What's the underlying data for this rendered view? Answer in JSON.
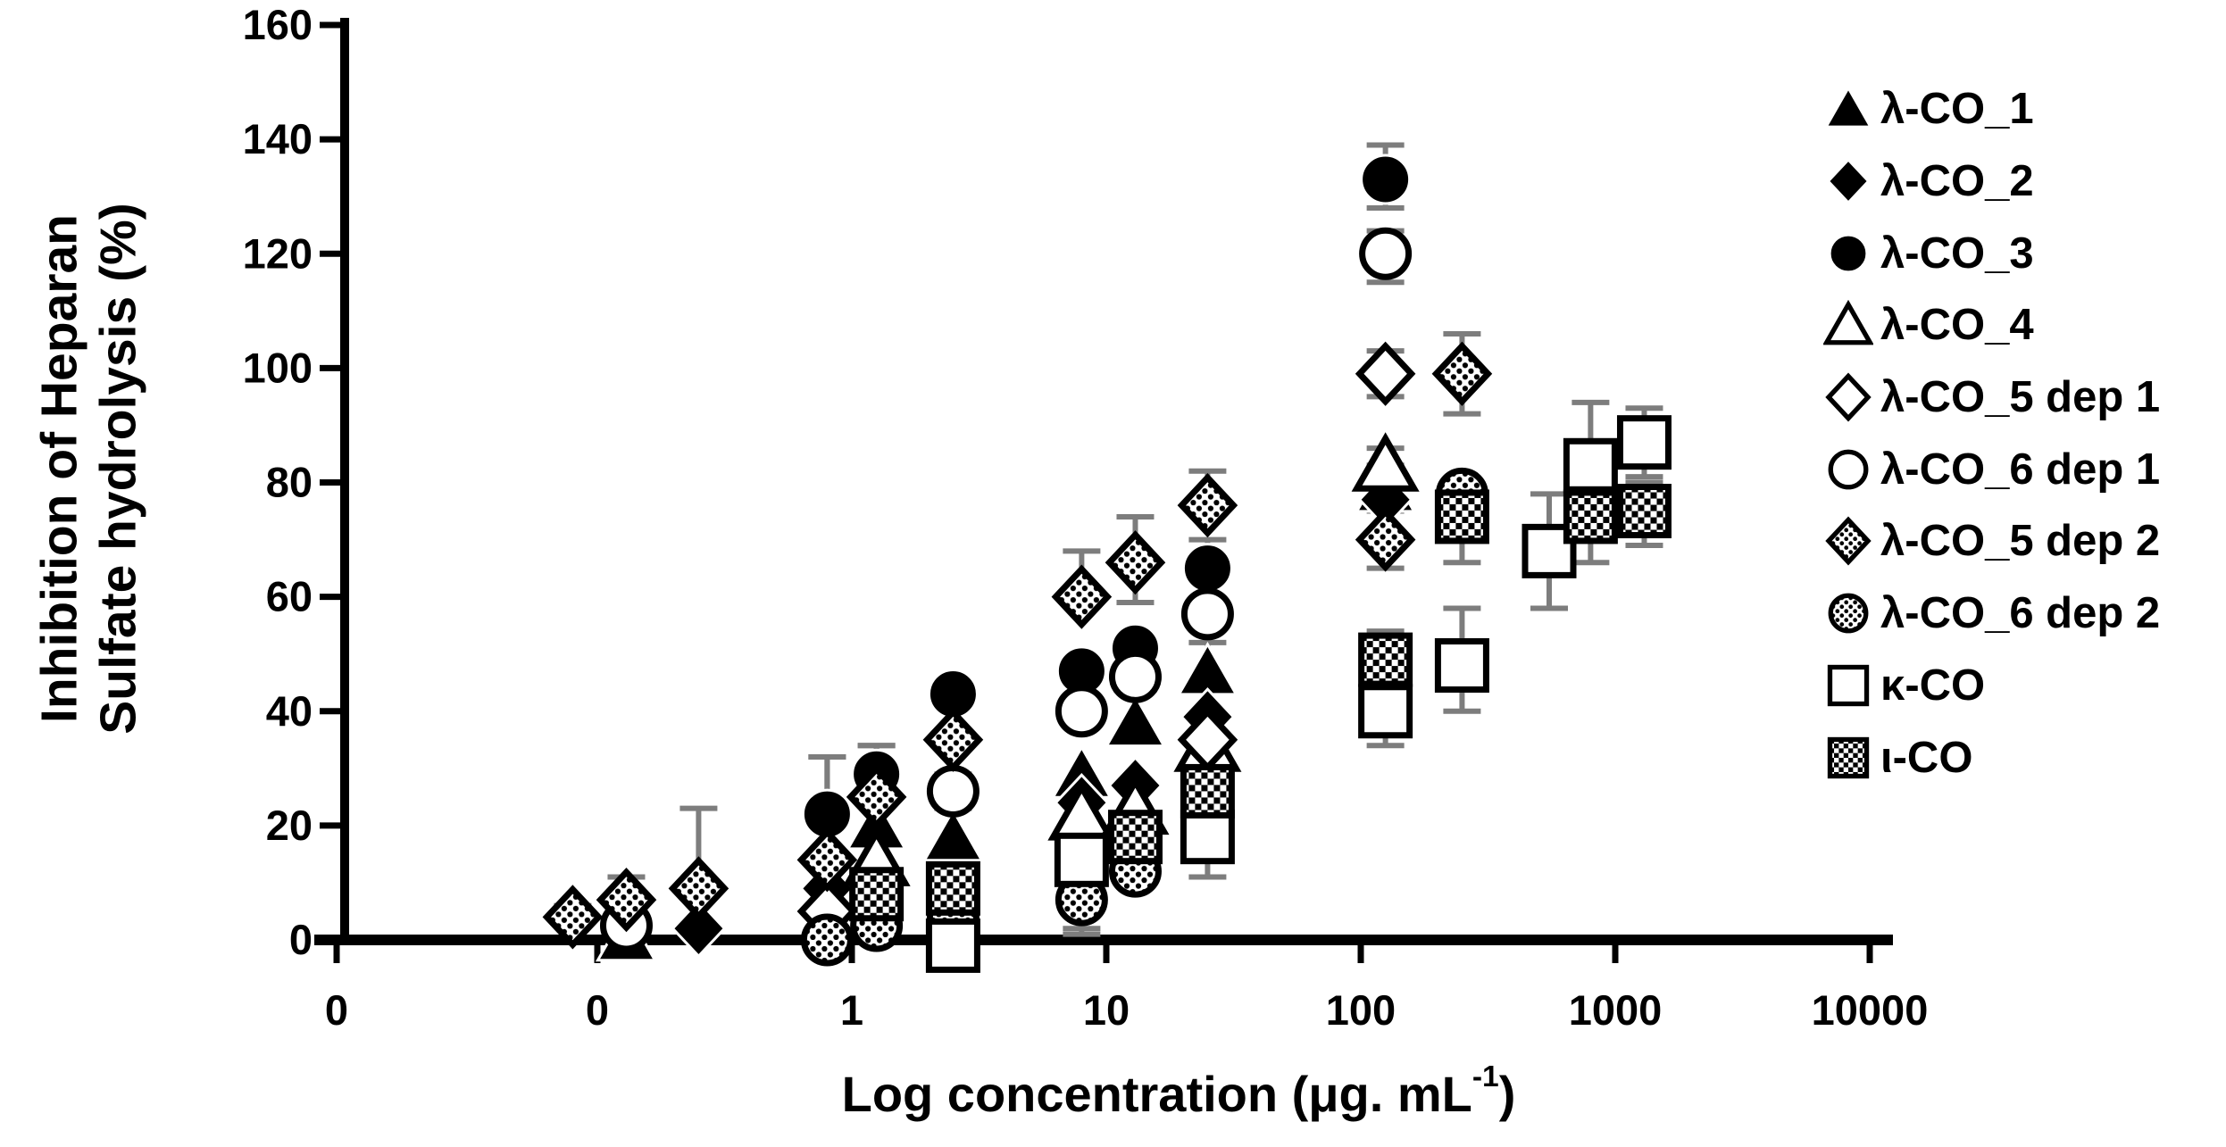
{
  "chart_data": {
    "type": "scatter",
    "title": "",
    "xlabel": "Log concentration (μg. mL⁻¹)",
    "xlabel_parts": {
      "base": "Log concentration (μg. mL",
      "sup": "-1",
      "close": ")"
    },
    "ylabel": "Inhibition of Heparan Sulfate hydrolysis (%)",
    "ylabel_lines": [
      "Inhibition of Heparan",
      "Sulfate hydrolysis (%)"
    ],
    "x_scale": "log",
    "x_tick_labels": [
      "0",
      "0",
      "1",
      "10",
      "100",
      "1000",
      "10000"
    ],
    "x_tick_values": [
      0,
      0.1,
      1,
      10,
      100,
      1000,
      10000
    ],
    "y_ticks": [
      0,
      20,
      40,
      60,
      80,
      100,
      120,
      140,
      160
    ],
    "ylim": [
      0,
      160
    ],
    "grid": false,
    "legend_position": "right",
    "marker_color": "#000000",
    "error_bar_color": "#7d7d7d",
    "series": [
      {
        "name": "λ-CO_1",
        "marker": "filled-triangle",
        "points": [
          {
            "x": 0.13,
            "y": 0.5
          },
          {
            "x": 1.25,
            "y": 20
          },
          {
            "x": 2.5,
            "y": 18
          },
          {
            "x": 8,
            "y": 29
          },
          {
            "x": 13,
            "y": 38
          },
          {
            "x": 25,
            "y": 47,
            "eu": 5
          },
          {
            "x": 125,
            "y": 79,
            "eu": 4,
            "ed": 4
          }
        ]
      },
      {
        "name": "λ-CO_2",
        "marker": "filled-diamond",
        "points": [
          {
            "x": 0.25,
            "y": 2
          },
          {
            "x": 0.8,
            "y": 9
          },
          {
            "x": 8,
            "y": 24
          },
          {
            "x": 13,
            "y": 27
          },
          {
            "x": 25,
            "y": 39
          },
          {
            "x": 125,
            "y": 77
          }
        ]
      },
      {
        "name": "λ-CO_3",
        "marker": "filled-circle",
        "points": [
          {
            "x": 0.8,
            "y": 22,
            "eu": 10
          },
          {
            "x": 1.25,
            "y": 29,
            "eu": 5
          },
          {
            "x": 2.5,
            "y": 43
          },
          {
            "x": 8,
            "y": 47
          },
          {
            "x": 13,
            "y": 51
          },
          {
            "x": 25,
            "y": 65,
            "eu": 5
          },
          {
            "x": 125,
            "y": 133,
            "eu": 6,
            "ed": 5
          }
        ]
      },
      {
        "name": "λ-CO_4",
        "marker": "open-triangle",
        "points": [
          {
            "x": 1.25,
            "y": 14
          },
          {
            "x": 8,
            "y": 22
          },
          {
            "x": 13,
            "y": 23
          },
          {
            "x": 25,
            "y": 34
          },
          {
            "x": 125,
            "y": 83,
            "eu": 3
          }
        ]
      },
      {
        "name": "λ-CO_5 dep 1",
        "marker": "open-diamond",
        "points": [
          {
            "x": 0.8,
            "y": 5
          },
          {
            "x": 25,
            "y": 35
          },
          {
            "x": 125,
            "y": 99,
            "eu": 4,
            "ed": 4
          }
        ]
      },
      {
        "name": "λ-CO_6 dep 1",
        "marker": "open-circle",
        "points": [
          {
            "x": 0.13,
            "y": 2.5
          },
          {
            "x": 2.5,
            "y": 26,
            "eu": 3,
            "ed": 3
          },
          {
            "x": 8,
            "y": 40
          },
          {
            "x": 13,
            "y": 46
          },
          {
            "x": 25,
            "y": 57
          },
          {
            "x": 125,
            "y": 120,
            "eu": 4,
            "ed": 5
          }
        ]
      },
      {
        "name": "λ-CO_5 dep 2",
        "marker": "dotted-diamond",
        "points": [
          {
            "x": 0.08,
            "y": 4,
            "eu": 2
          },
          {
            "x": 0.13,
            "y": 7,
            "eu": 4
          },
          {
            "x": 0.25,
            "y": 9,
            "eu": 14
          },
          {
            "x": 0.8,
            "y": 14,
            "eu": 18
          },
          {
            "x": 1.25,
            "y": 25,
            "eu": 9
          },
          {
            "x": 2.5,
            "y": 35
          },
          {
            "x": 8,
            "y": 60,
            "eu": 8
          },
          {
            "x": 13,
            "y": 66,
            "eu": 8,
            "ed": 7
          },
          {
            "x": 25,
            "y": 76,
            "eu": 6
          },
          {
            "x": 125,
            "y": 70,
            "ed": 5
          },
          {
            "x": 250,
            "y": 99,
            "eu": 7,
            "ed": 7
          }
        ]
      },
      {
        "name": "λ-CO_6 dep 2",
        "marker": "dotted-circle",
        "points": [
          {
            "x": 0.8,
            "y": 0
          },
          {
            "x": 1.25,
            "y": 2.5
          },
          {
            "x": 2.5,
            "y": 4
          },
          {
            "x": 8,
            "y": 7,
            "ed": 6
          },
          {
            "x": 13,
            "y": 12
          },
          {
            "x": 250,
            "y": 78,
            "eu": 2
          }
        ]
      },
      {
        "name": "κ-CO",
        "marker": "open-square",
        "points": [
          {
            "x": 2.5,
            "y": -1
          },
          {
            "x": 8,
            "y": 14,
            "ed": 12
          },
          {
            "x": 25,
            "y": 18,
            "ed": 7
          },
          {
            "x": 125,
            "y": 40,
            "eu": 9,
            "ed": 6
          },
          {
            "x": 250,
            "y": 48,
            "eu": 10,
            "ed": 8
          },
          {
            "x": 550,
            "y": 68,
            "eu": 10,
            "ed": 10
          },
          {
            "x": 800,
            "y": 83,
            "eu": 11,
            "ed": 9
          },
          {
            "x": 1300,
            "y": 87,
            "eu": 6,
            "ed": 6
          }
        ]
      },
      {
        "name": "ι-CO",
        "marker": "checker-square",
        "points": [
          {
            "x": 1.25,
            "y": 8
          },
          {
            "x": 2.5,
            "y": 9
          },
          {
            "x": 13,
            "y": 18
          },
          {
            "x": 25,
            "y": 26,
            "ed": 7
          },
          {
            "x": 125,
            "y": 49,
            "eu": 5,
            "ed": 10
          },
          {
            "x": 250,
            "y": 74,
            "eu": 3,
            "ed": 8
          },
          {
            "x": 800,
            "y": 74,
            "eu": 6,
            "ed": 8
          },
          {
            "x": 1300,
            "y": 75,
            "eu": 5,
            "ed": 6
          }
        ]
      }
    ]
  }
}
